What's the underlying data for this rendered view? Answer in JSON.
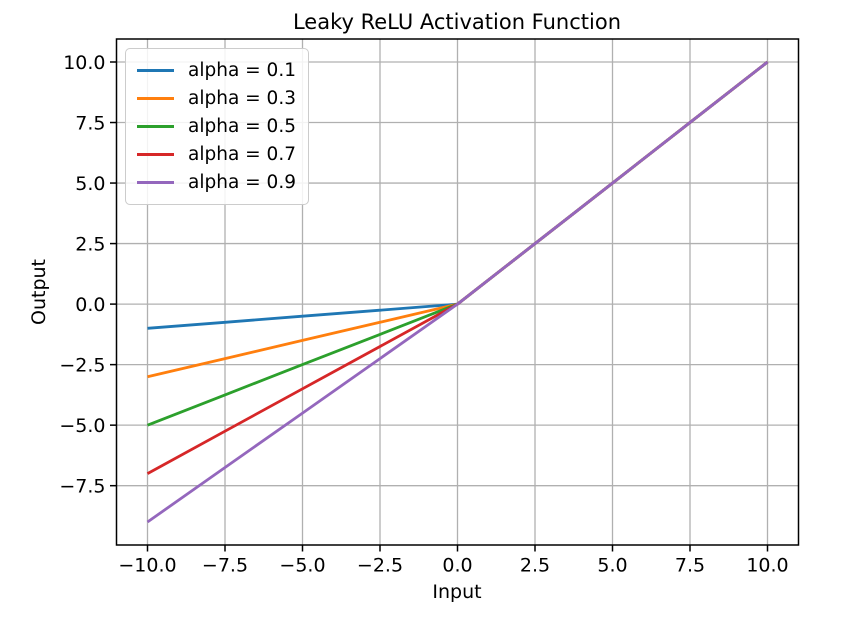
{
  "chart_data": {
    "type": "line",
    "title": "Leaky ReLU Activation Function",
    "xlabel": "Input",
    "ylabel": "Output",
    "xlim": [
      -11,
      11
    ],
    "ylim": [
      -9.95,
      10.95
    ],
    "grid": true,
    "grid_color": "#b0b0b0",
    "legend_position": "upper left",
    "x": [
      -10,
      -7.5,
      -5,
      -2.5,
      0,
      2.5,
      5,
      7.5,
      10
    ],
    "series": [
      {
        "name": "alpha = 0.1",
        "color": "#1f77b4",
        "values": [
          -1.0,
          -0.75,
          -0.5,
          -0.25,
          0.0,
          2.5,
          5.0,
          7.5,
          10.0
        ]
      },
      {
        "name": "alpha = 0.3",
        "color": "#ff7f0e",
        "values": [
          -3.0,
          -2.25,
          -1.5,
          -0.75,
          0.0,
          2.5,
          5.0,
          7.5,
          10.0
        ]
      },
      {
        "name": "alpha = 0.5",
        "color": "#2ca02c",
        "values": [
          -5.0,
          -3.75,
          -2.5,
          -1.25,
          0.0,
          2.5,
          5.0,
          7.5,
          10.0
        ]
      },
      {
        "name": "alpha = 0.7",
        "color": "#d62728",
        "values": [
          -7.0,
          -5.25,
          -3.5,
          -1.75,
          0.0,
          2.5,
          5.0,
          7.5,
          10.0
        ]
      },
      {
        "name": "alpha = 0.9",
        "color": "#9467bd",
        "values": [
          -9.0,
          -6.75,
          -4.5,
          -2.25,
          0.0,
          2.5,
          5.0,
          7.5,
          10.0
        ]
      }
    ],
    "xticks": {
      "values": [
        -10,
        -7.5,
        -5,
        -2.5,
        0,
        2.5,
        5,
        7.5,
        10
      ],
      "labels": [
        "−10.0",
        "−7.5",
        "−5.0",
        "−2.5",
        "0.0",
        "2.5",
        "5.0",
        "7.5",
        "10.0"
      ]
    },
    "yticks": {
      "values": [
        -7.5,
        -5,
        -2.5,
        0,
        2.5,
        5,
        7.5,
        10
      ],
      "labels": [
        "−7.5",
        "−5.0",
        "−2.5",
        "0.0",
        "2.5",
        "5.0",
        "7.5",
        "10.0"
      ]
    }
  }
}
